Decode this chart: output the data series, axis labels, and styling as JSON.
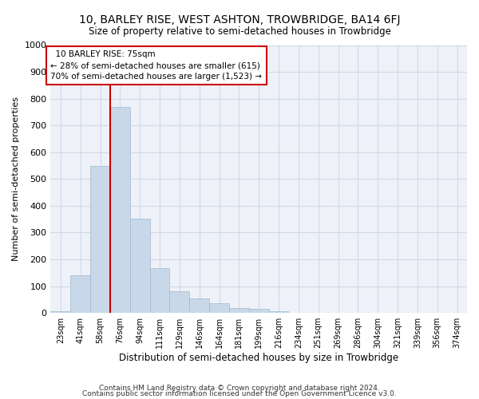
{
  "title": "10, BARLEY RISE, WEST ASHTON, TROWBRIDGE, BA14 6FJ",
  "subtitle": "Size of property relative to semi-detached houses in Trowbridge",
  "xlabel": "Distribution of semi-detached houses by size in Trowbridge",
  "ylabel": "Number of semi-detached properties",
  "bar_color": "#c8d8e8",
  "bar_edge_color": "#a0b8d0",
  "grid_color": "#d0d8e8",
  "background_color": "#eef2f8",
  "property_line_color": "#cc0000",
  "annotation_box_color": "#cc0000",
  "categories": [
    "23sqm",
    "41sqm",
    "58sqm",
    "76sqm",
    "94sqm",
    "111sqm",
    "129sqm",
    "146sqm",
    "164sqm",
    "181sqm",
    "199sqm",
    "216sqm",
    "234sqm",
    "251sqm",
    "269sqm",
    "286sqm",
    "304sqm",
    "321sqm",
    "339sqm",
    "356sqm",
    "374sqm"
  ],
  "values": [
    8,
    140,
    548,
    770,
    352,
    168,
    82,
    55,
    35,
    18,
    15,
    8,
    0,
    0,
    0,
    0,
    0,
    0,
    0,
    0,
    0
  ],
  "property_size": 75,
  "property_label": "10 BARLEY RISE: 75sqm",
  "smaller_pct": 28,
  "smaller_count": 615,
  "larger_pct": 70,
  "larger_count": 1523,
  "property_bar_index": 3,
  "ylim": [
    0,
    1000
  ],
  "yticks": [
    0,
    100,
    200,
    300,
    400,
    500,
    600,
    700,
    800,
    900,
    1000
  ],
  "footnote1": "Contains HM Land Registry data © Crown copyright and database right 2024.",
  "footnote2": "Contains public sector information licensed under the Open Government Licence v3.0."
}
